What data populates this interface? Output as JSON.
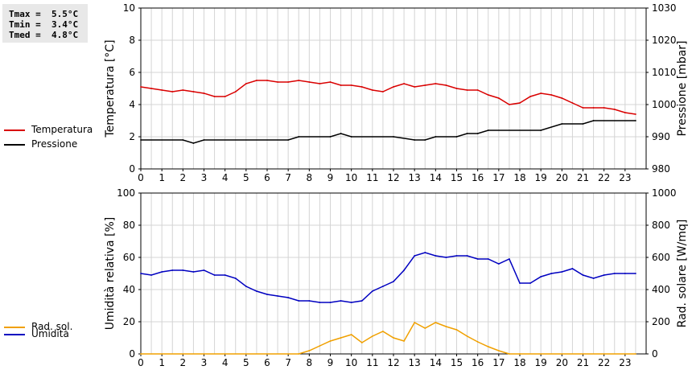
{
  "stats": {
    "tmax": "Tmax =  5.5°C",
    "tmin": "Tmin =  3.4°C",
    "tmed": "Tmed =  4.8°C"
  },
  "legend": {
    "top": [
      {
        "label": "Temperatura",
        "color": "#d90000"
      },
      {
        "label": "Pressione",
        "color": "#000000"
      }
    ],
    "bottom": [
      {
        "label": "Umidità",
        "color": "#0000c0"
      },
      {
        "label": "Rad. sol.",
        "color": "#f0a000"
      }
    ]
  },
  "chart_data": [
    {
      "type": "line",
      "ylabel": "Temperatura [°C]",
      "y2label": "Pressione [mbar]",
      "xlim": [
        0,
        24
      ],
      "ylim": [
        0,
        10
      ],
      "y2lim": [
        980,
        1030
      ],
      "x_ticks": [
        "0",
        "1",
        "2",
        "3",
        "4",
        "5",
        "6",
        "7",
        "8",
        "9",
        "10",
        "11",
        "12",
        "13",
        "14",
        "15",
        "16",
        "17",
        "18",
        "19",
        "20",
        "21",
        "22",
        "23"
      ],
      "y_ticks": [
        "0",
        "2",
        "4",
        "6",
        "8",
        "10"
      ],
      "y2_ticks": [
        "980",
        "990",
        "1000",
        "1010",
        "1020",
        "1030"
      ],
      "grid": true,
      "series": [
        {
          "name": "Temperatura",
          "axis": "left",
          "color": "#d90000",
          "x": [
            0,
            0.5,
            1,
            1.5,
            2,
            2.5,
            3,
            3.5,
            4,
            4.5,
            5,
            5.5,
            6,
            6.5,
            7,
            7.5,
            8,
            8.5,
            9,
            9.5,
            10,
            10.5,
            11,
            11.5,
            12,
            12.5,
            13,
            13.5,
            14,
            14.5,
            15,
            15.5,
            16,
            16.5,
            17,
            17.5,
            18,
            18.5,
            19,
            19.5,
            20,
            20.5,
            21,
            21.5,
            22,
            22.5,
            23,
            23.5
          ],
          "values": [
            5.1,
            5.0,
            4.9,
            4.8,
            4.9,
            4.8,
            4.7,
            4.5,
            4.5,
            4.8,
            5.3,
            5.5,
            5.5,
            5.4,
            5.4,
            5.5,
            5.4,
            5.3,
            5.4,
            5.2,
            5.2,
            5.1,
            4.9,
            4.8,
            5.1,
            5.3,
            5.1,
            5.2,
            5.3,
            5.2,
            5.0,
            4.9,
            4.9,
            4.6,
            4.4,
            4.0,
            4.1,
            4.5,
            4.7,
            4.6,
            4.4,
            4.1,
            3.8,
            3.8,
            3.8,
            3.7,
            3.5,
            3.4
          ]
        },
        {
          "name": "Pressione",
          "axis": "right",
          "color": "#000000",
          "x": [
            0,
            2,
            2.5,
            3,
            7,
            7.5,
            9,
            9.5,
            10,
            12,
            13,
            13.5,
            14,
            15,
            15.5,
            16,
            16.5,
            19,
            20,
            21,
            21.5,
            23.5
          ],
          "values": [
            989,
            989,
            988,
            989,
            989,
            990,
            990,
            991,
            990,
            990,
            989,
            989,
            990,
            990,
            991,
            991,
            992,
            992,
            994,
            994,
            995,
            995
          ]
        }
      ]
    },
    {
      "type": "line",
      "ylabel": "Umidità relativa [%]",
      "y2label": "Rad. solare [W/mq]",
      "xlim": [
        0,
        24
      ],
      "ylim": [
        0,
        100
      ],
      "y2lim": [
        0,
        1000
      ],
      "x_ticks": [
        "0",
        "1",
        "2",
        "3",
        "4",
        "5",
        "6",
        "7",
        "8",
        "9",
        "10",
        "11",
        "12",
        "13",
        "14",
        "15",
        "16",
        "17",
        "18",
        "19",
        "20",
        "21",
        "22",
        "23"
      ],
      "y_ticks": [
        "0",
        "20",
        "40",
        "60",
        "80",
        "100"
      ],
      "y2_ticks": [
        "0",
        "200",
        "400",
        "600",
        "800",
        "1000"
      ],
      "grid": true,
      "series": [
        {
          "name": "Umidità",
          "axis": "left",
          "color": "#0000c0",
          "x": [
            0,
            0.5,
            1,
            1.5,
            2,
            2.5,
            3,
            3.5,
            4,
            4.5,
            5,
            5.5,
            6,
            6.5,
            7,
            7.5,
            8,
            8.5,
            9,
            9.5,
            10,
            10.5,
            11,
            11.5,
            12,
            12.5,
            13,
            13.5,
            14,
            14.5,
            15,
            15.5,
            16,
            16.5,
            17,
            17.5,
            18,
            18.5,
            19,
            19.5,
            20,
            20.5,
            21,
            21.5,
            22,
            22.5,
            23,
            23.5
          ],
          "values": [
            50,
            49,
            51,
            52,
            52,
            51,
            52,
            49,
            49,
            47,
            42,
            39,
            37,
            36,
            35,
            33,
            33,
            32,
            32,
            33,
            32,
            33,
            39,
            42,
            45,
            52,
            61,
            63,
            61,
            60,
            61,
            61,
            59,
            59,
            56,
            59,
            44,
            44,
            48,
            50,
            51,
            53,
            49,
            47,
            49,
            50,
            50,
            50
          ]
        },
        {
          "name": "Rad. sol.",
          "axis": "right",
          "color": "#f0a000",
          "x": [
            0,
            7.5,
            8,
            8.5,
            9,
            9.5,
            10,
            10.5,
            11,
            11.5,
            12,
            12.5,
            13,
            13.5,
            14,
            14.5,
            15,
            15.5,
            16,
            16.5,
            17,
            17.5,
            18,
            23.5
          ],
          "values": [
            0,
            0,
            20,
            50,
            80,
            100,
            120,
            70,
            110,
            140,
            100,
            80,
            195,
            160,
            195,
            170,
            150,
            110,
            75,
            45,
            20,
            0,
            0,
            0
          ]
        }
      ]
    }
  ]
}
